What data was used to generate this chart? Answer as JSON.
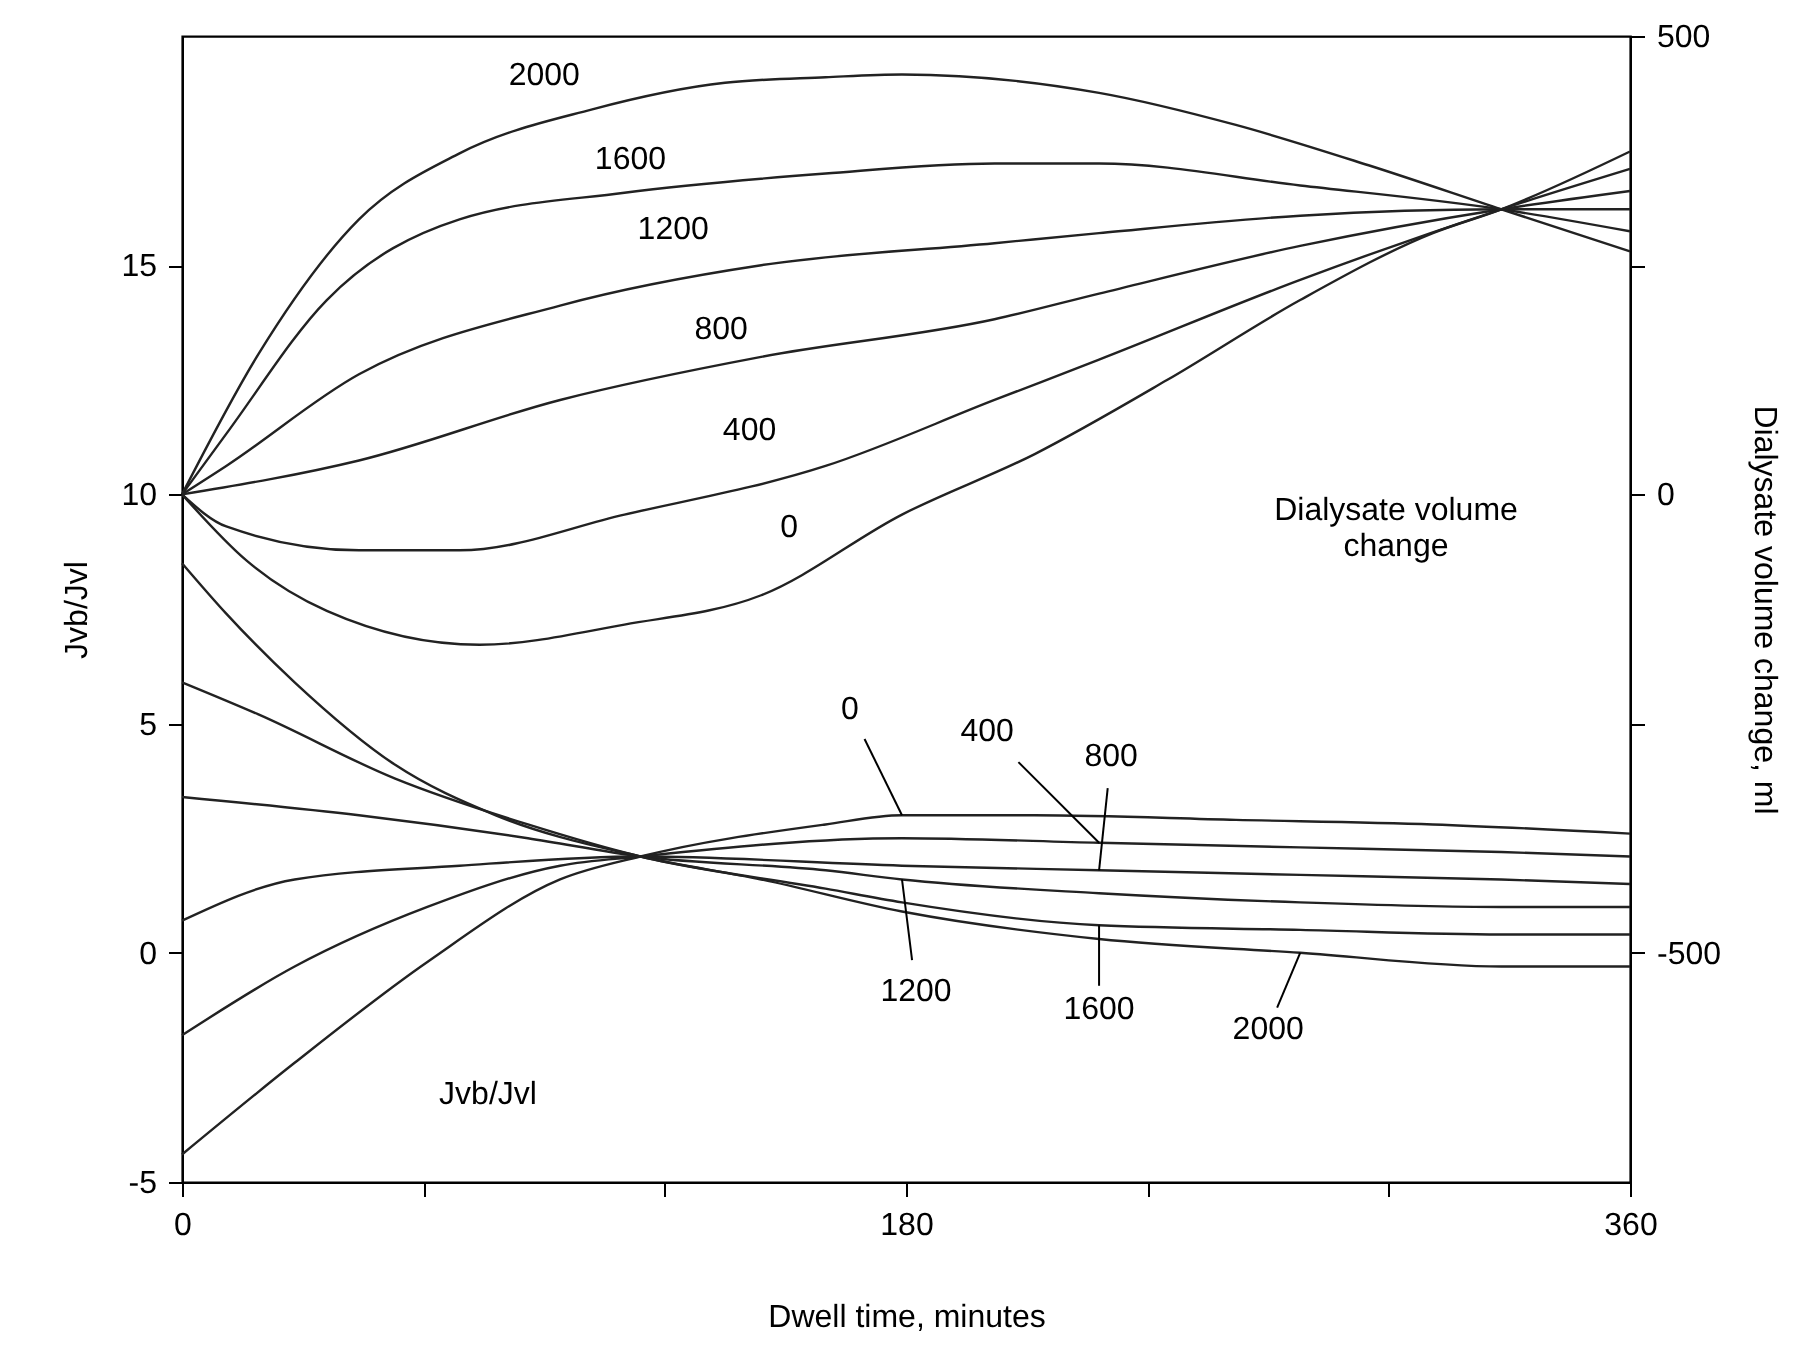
{
  "chart_data": {
    "type": "line",
    "xlabel": "Dwell time, minutes",
    "ylabel": "Jvb/Jvl",
    "y2label": "Dialysate volume change, ml",
    "xlim": [
      0,
      360
    ],
    "xticks": [
      0,
      {
        "value": 60,
        "label": null
      },
      {
        "value": 120,
        "label": null
      },
      180,
      {
        "value": 240,
        "label": null
      },
      {
        "value": 300,
        "label": null
      },
      360
    ],
    "ylim": [
      -5,
      20
    ],
    "yticks": [
      -5,
      0,
      5,
      10,
      15
    ],
    "y2lim": [
      -750,
      500
    ],
    "y2ticks": [
      -500,
      {
        "value": -250,
        "label": null
      },
      0,
      {
        "value": 250,
        "label": null
      },
      500
    ],
    "grid": false,
    "marker": "none",
    "line_style": "solid",
    "annotations": [
      "Dialysate volume\nchange",
      "Jvb/Jvl"
    ],
    "series": [
      {
        "name": "0",
        "axis": "y2",
        "color": "#222222",
        "x": [
          0,
          16,
          36,
          74,
          110,
          144,
          179,
          212,
          245,
          278,
          311,
          328,
          360
        ],
        "values": [
          0,
          -72,
          -127,
          -164,
          -142,
          -110,
          -22,
          44,
          125,
          212,
          285,
          311,
          374
        ]
      },
      {
        "name": "400",
        "axis": "y2",
        "color": "#222222",
        "x": [
          0,
          11,
          44,
          69,
          110,
          160,
          202,
          228,
          278,
          328,
          360
        ],
        "values": [
          0,
          -35,
          -61,
          -61,
          -22,
          31,
          103,
          147,
          234,
          311,
          355
        ]
      },
      {
        "name": "800",
        "axis": "y2",
        "color": "#222222",
        "x": [
          0,
          44,
          94,
          144,
          202,
          228,
          278,
          328,
          360
        ],
        "values": [
          0,
          37,
          103,
          150,
          191,
          219,
          271,
          311,
          331
        ]
      },
      {
        "name": "1200",
        "axis": "y2",
        "color": "#222222",
        "x": [
          0,
          11,
          44,
          94,
          144,
          202,
          228,
          278,
          328,
          360
        ],
        "values": [
          0,
          31,
          131,
          206,
          250,
          274,
          285,
          304,
          311,
          311
        ]
      },
      {
        "name": "1600",
        "axis": "y2",
        "color": "#222222",
        "x": [
          0,
          11,
          36,
          69,
          110,
          160,
          202,
          228,
          278,
          328,
          360
        ],
        "values": [
          0,
          66,
          212,
          300,
          329,
          350,
          361,
          361,
          337,
          311,
          287
        ]
      },
      {
        "name": "2000",
        "axis": "y2",
        "color": "#222222",
        "x": [
          0,
          19,
          44,
          69,
          102,
          135,
          160,
          179,
          228,
          262,
          295,
          328,
          360
        ],
        "values": [
          0,
          153,
          300,
          372,
          420,
          449,
          455,
          458,
          438,
          403,
          359,
          311,
          265
        ]
      },
      {
        "name": "0",
        "color": "#222222",
        "x": [
          0,
          28,
          61,
          94,
          114,
          160,
          179,
          212,
          262,
          311,
          360
        ],
        "values": [
          -4.4,
          -2.4,
          -0.2,
          1.6,
          2.1,
          2.8,
          3.0,
          3.0,
          2.9,
          2.8,
          2.6
        ]
      },
      {
        "name": "400",
        "color": "#222222",
        "x": [
          0,
          28,
          61,
          94,
          114,
          179,
          228,
          278,
          328,
          360
        ],
        "values": [
          -1.8,
          -0.3,
          1.0,
          1.9,
          2.1,
          2.5,
          2.4,
          2.3,
          2.2,
          2.1
        ]
      },
      {
        "name": "800",
        "color": "#222222",
        "x": [
          0,
          28,
          69,
          114,
          179,
          228,
          278,
          328,
          360
        ],
        "values": [
          0.7,
          1.6,
          1.9,
          2.1,
          1.9,
          1.8,
          1.7,
          1.6,
          1.5
        ]
      },
      {
        "name": "1200",
        "color": "#222222",
        "x": [
          0,
          44,
          86,
          114,
          160,
          179,
          228,
          278,
          328,
          360
        ],
        "values": [
          3.4,
          3.0,
          2.5,
          2.1,
          1.8,
          1.6,
          1.3,
          1.1,
          1.0,
          1.0
        ]
      },
      {
        "name": "1600",
        "color": "#222222",
        "x": [
          0,
          19,
          53,
          86,
          114,
          160,
          179,
          228,
          278,
          328,
          360
        ],
        "values": [
          5.9,
          5.2,
          3.8,
          2.8,
          2.1,
          1.4,
          1.1,
          0.6,
          0.5,
          0.4,
          0.4
        ]
      },
      {
        "name": "2000",
        "color": "#222222",
        "x": [
          0,
          11,
          28,
          53,
          78,
          114,
          144,
          179,
          228,
          278,
          328,
          360
        ],
        "values": [
          8.5,
          7.4,
          5.9,
          4.1,
          3.0,
          2.1,
          1.6,
          0.9,
          0.3,
          0.0,
          -0.3,
          -0.3
        ]
      }
    ]
  }
}
